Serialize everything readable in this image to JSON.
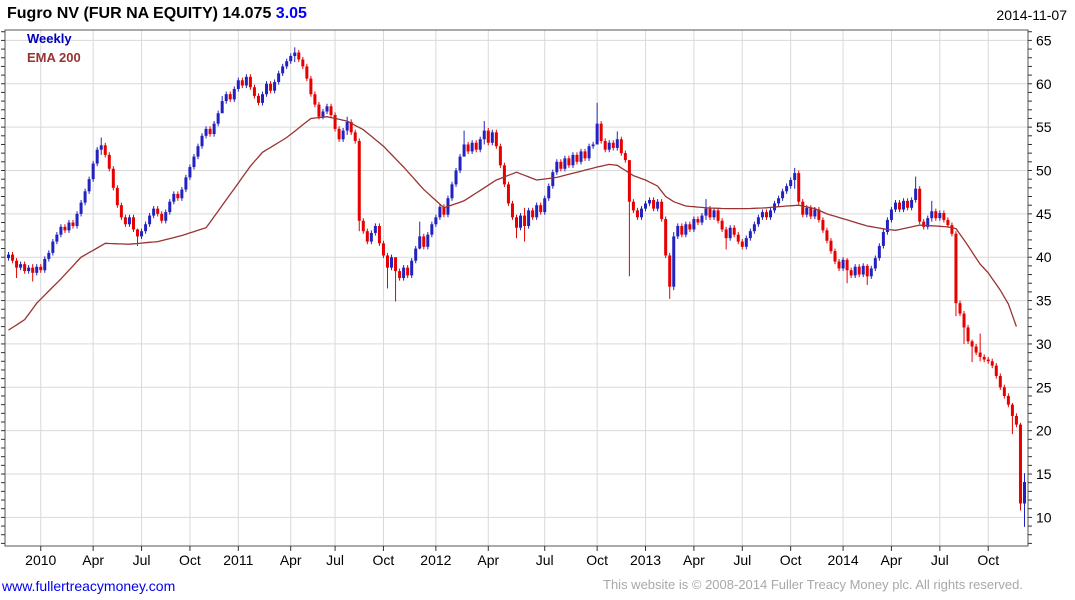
{
  "header": {
    "title": "Fugro NV (FUR NA EQUITY)",
    "last_price": "14.075",
    "change": "3.05",
    "date": "2014-11-07"
  },
  "legend": {
    "series_label": "Weekly",
    "overlay_label": "EMA 200"
  },
  "footer": {
    "link": "www.fullertreacymoney.com",
    "copyright": "This website is © 2008-2014 Fuller Treacy Money plc. All rights reserved."
  },
  "colors": {
    "up_candle": "#2222c0",
    "down_candle": "#e60000",
    "ema_line": "#993333",
    "grid": "#d9d9d9",
    "border": "#555555",
    "tick": "#333333",
    "axis_text": "#000000",
    "title_text": "#000000",
    "change_text": "#0000ff",
    "legend_series": "#0000bb",
    "legend_ema": "#993333",
    "link": "#0000ee",
    "copyright_text": "#a8a8a8"
  },
  "chart_data": {
    "type": "candlestick",
    "title": "Fugro NV (FUR NA EQUITY)",
    "interval": "Weekly",
    "overlay": "EMA 200",
    "last_close": 14.075,
    "ylim": [
      6.7,
      66.2
    ],
    "y_ticks": [
      10,
      15,
      20,
      25,
      30,
      35,
      40,
      45,
      50,
      55,
      60,
      65
    ],
    "x_tick_labels": [
      "2010",
      "Apr",
      "Jul",
      "Oct",
      "2011",
      "Apr",
      "Jul",
      "Oct",
      "2012",
      "Apr",
      "Jul",
      "Oct",
      "2013",
      "Apr",
      "Jul",
      "Oct",
      "2014",
      "Apr",
      "Jul",
      "Oct"
    ],
    "x_tick_indices": [
      8,
      21,
      33,
      45,
      57,
      70,
      81,
      93,
      106,
      119,
      133,
      146,
      158,
      170,
      182,
      194,
      207,
      219,
      231,
      243
    ],
    "first_open": 39.9,
    "closes": [
      40.3,
      39.6,
      38.8,
      39.2,
      38.4,
      38.8,
      38.2,
      38.9,
      38.5,
      39.8,
      40.5,
      41.8,
      42.6,
      43.5,
      43.1,
      44.0,
      43.6,
      45.0,
      46.3,
      47.6,
      49.0,
      50.8,
      52.4,
      52.9,
      51.8,
      50.2,
      48.0,
      46.0,
      44.6,
      43.8,
      44.6,
      43.2,
      42.4,
      43.0,
      43.8,
      44.8,
      45.6,
      45.0,
      44.2,
      45.2,
      46.4,
      47.3,
      46.8,
      47.8,
      49.2,
      50.4,
      51.6,
      52.8,
      54.0,
      54.8,
      54.2,
      55.4,
      56.6,
      58.0,
      58.8,
      58.2,
      59.4,
      60.4,
      59.8,
      60.8,
      59.6,
      58.6,
      57.8,
      58.8,
      60.0,
      59.2,
      60.2,
      61.2,
      62.0,
      62.6,
      63.2,
      63.6,
      62.8,
      62.0,
      60.6,
      58.8,
      57.6,
      56.2,
      56.8,
      57.4,
      56.4,
      54.8,
      53.6,
      54.6,
      55.6,
      54.4,
      53.4,
      44.2,
      43.0,
      41.8,
      42.8,
      43.6,
      41.6,
      40.2,
      38.8,
      40.0,
      38.4,
      37.6,
      38.8,
      37.9,
      39.6,
      41.0,
      42.4,
      41.2,
      42.6,
      43.8,
      44.6,
      45.8,
      44.9,
      46.8,
      48.4,
      50.0,
      51.6,
      53.0,
      52.2,
      53.2,
      52.4,
      53.6,
      54.6,
      53.2,
      54.4,
      52.8,
      50.6,
      48.4,
      46.2,
      44.6,
      43.4,
      44.8,
      43.6,
      45.4,
      44.6,
      46.0,
      45.2,
      46.8,
      48.2,
      49.8,
      51.0,
      50.2,
      51.4,
      50.6,
      51.8,
      51.0,
      52.2,
      51.4,
      52.8,
      53.0,
      55.4,
      53.4,
      52.4,
      53.2,
      52.6,
      53.6,
      52.0,
      51.2,
      46.4,
      45.4,
      44.6,
      45.6,
      46.2,
      46.6,
      45.6,
      46.4,
      44.4,
      40.2,
      36.6,
      42.4,
      43.6,
      42.6,
      43.8,
      43.2,
      44.4,
      44.0,
      44.8,
      45.6,
      44.6,
      45.4,
      44.2,
      43.2,
      42.2,
      43.4,
      42.6,
      41.8,
      41.2,
      42.2,
      43.0,
      43.8,
      44.6,
      45.2,
      44.6,
      45.4,
      46.2,
      46.8,
      47.6,
      48.2,
      48.9,
      49.7,
      46.4,
      44.9,
      45.7,
      44.7,
      45.5,
      44.3,
      43.1,
      41.9,
      40.7,
      39.5,
      38.7,
      39.7,
      38.5,
      37.9,
      38.9,
      38.0,
      39.0,
      37.8,
      38.7,
      39.9,
      41.3,
      42.9,
      44.3,
      45.5,
      46.3,
      45.5,
      46.5,
      45.7,
      46.6,
      47.9,
      44.1,
      43.5,
      44.5,
      45.3,
      44.5,
      45.1,
      44.3,
      43.7,
      42.7,
      34.7,
      33.5,
      31.9,
      30.3,
      29.7,
      29.0,
      28.5,
      28.2,
      28.0,
      27.5,
      26.3,
      25.0,
      24.0,
      23.0,
      21.7,
      20.7,
      11.6,
      14.075
    ],
    "wick_overrides": {
      "2": [
        39.9,
        37.6
      ],
      "6": [
        39.2,
        37.2
      ],
      "23": [
        53.8,
        51.8
      ],
      "32": [
        43.3,
        41.3
      ],
      "53": [
        58.6,
        56.8
      ],
      "71": [
        64.2,
        62.5
      ],
      "84": [
        56.2,
        54.1
      ],
      "87": [
        53.7,
        43.0
      ],
      "94": [
        40.5,
        36.4
      ],
      "96": [
        38.7,
        34.9
      ],
      "102": [
        44.1,
        40.9
      ],
      "113": [
        54.6,
        51.9
      ],
      "118": [
        55.7,
        53.0
      ],
      "126": [
        44.9,
        42.2
      ],
      "128": [
        45.7,
        41.8
      ],
      "146": [
        57.8,
        53.2
      ],
      "151": [
        54.5,
        52.3
      ],
      "154": [
        50.1,
        37.8
      ],
      "164": [
        40.5,
        35.2
      ],
      "165": [
        42.9,
        36.2
      ],
      "173": [
        46.7,
        44.3
      ],
      "178": [
        43.5,
        40.9
      ],
      "195": [
        50.3,
        47.9
      ],
      "208": [
        39.9,
        37.0
      ],
      "213": [
        39.2,
        36.8
      ],
      "225": [
        49.3,
        46.3
      ],
      "229": [
        46.5,
        44.1
      ],
      "235": [
        43.0,
        33.2
      ],
      "237": [
        33.8,
        30.0
      ],
      "239": [
        30.5,
        27.9
      ],
      "241": [
        31.2,
        28.0
      ],
      "249": [
        23.2,
        19.6
      ],
      "251": [
        20.9,
        10.8
      ],
      "252": [
        15.1,
        8.9
      ]
    },
    "ema_anchors": [
      [
        0,
        31.6
      ],
      [
        4,
        32.8
      ],
      [
        7,
        34.7
      ],
      [
        13,
        37.5
      ],
      [
        18,
        40.0
      ],
      [
        24,
        41.6
      ],
      [
        30,
        41.5
      ],
      [
        37,
        41.8
      ],
      [
        43,
        42.5
      ],
      [
        49,
        43.4
      ],
      [
        56,
        47.9
      ],
      [
        60,
        50.5
      ],
      [
        63,
        52.1
      ],
      [
        69,
        53.8
      ],
      [
        75,
        56.0
      ],
      [
        79,
        56.2
      ],
      [
        84,
        55.7
      ],
      [
        88,
        54.7
      ],
      [
        93,
        52.8
      ],
      [
        98,
        50.4
      ],
      [
        103,
        47.8
      ],
      [
        108,
        45.7
      ],
      [
        113,
        46.5
      ],
      [
        118,
        48.0
      ],
      [
        121,
        48.9
      ],
      [
        126,
        49.8
      ],
      [
        131,
        48.9
      ],
      [
        136,
        49.2
      ],
      [
        141,
        49.8
      ],
      [
        146,
        50.4
      ],
      [
        149,
        50.7
      ],
      [
        151,
        50.6
      ],
      [
        155,
        49.4
      ],
      [
        158,
        48.9
      ],
      [
        161,
        48.2
      ],
      [
        163,
        47.0
      ],
      [
        165,
        46.4
      ],
      [
        168,
        45.9
      ],
      [
        173,
        45.7
      ],
      [
        178,
        45.6
      ],
      [
        183,
        45.6
      ],
      [
        188,
        45.7
      ],
      [
        193,
        45.9
      ],
      [
        196,
        46.0
      ],
      [
        200,
        45.6
      ],
      [
        203,
        45.0
      ],
      [
        208,
        44.3
      ],
      [
        213,
        43.6
      ],
      [
        218,
        43.2
      ],
      [
        220,
        43.1
      ],
      [
        223,
        43.4
      ],
      [
        226,
        43.7
      ],
      [
        230,
        43.6
      ],
      [
        233,
        43.5
      ],
      [
        235,
        43.3
      ],
      [
        237,
        42.0
      ],
      [
        239,
        40.6
      ],
      [
        241,
        39.2
      ],
      [
        243,
        38.2
      ],
      [
        246,
        36.2
      ],
      [
        248,
        34.6
      ],
      [
        250,
        32.0
      ]
    ]
  }
}
